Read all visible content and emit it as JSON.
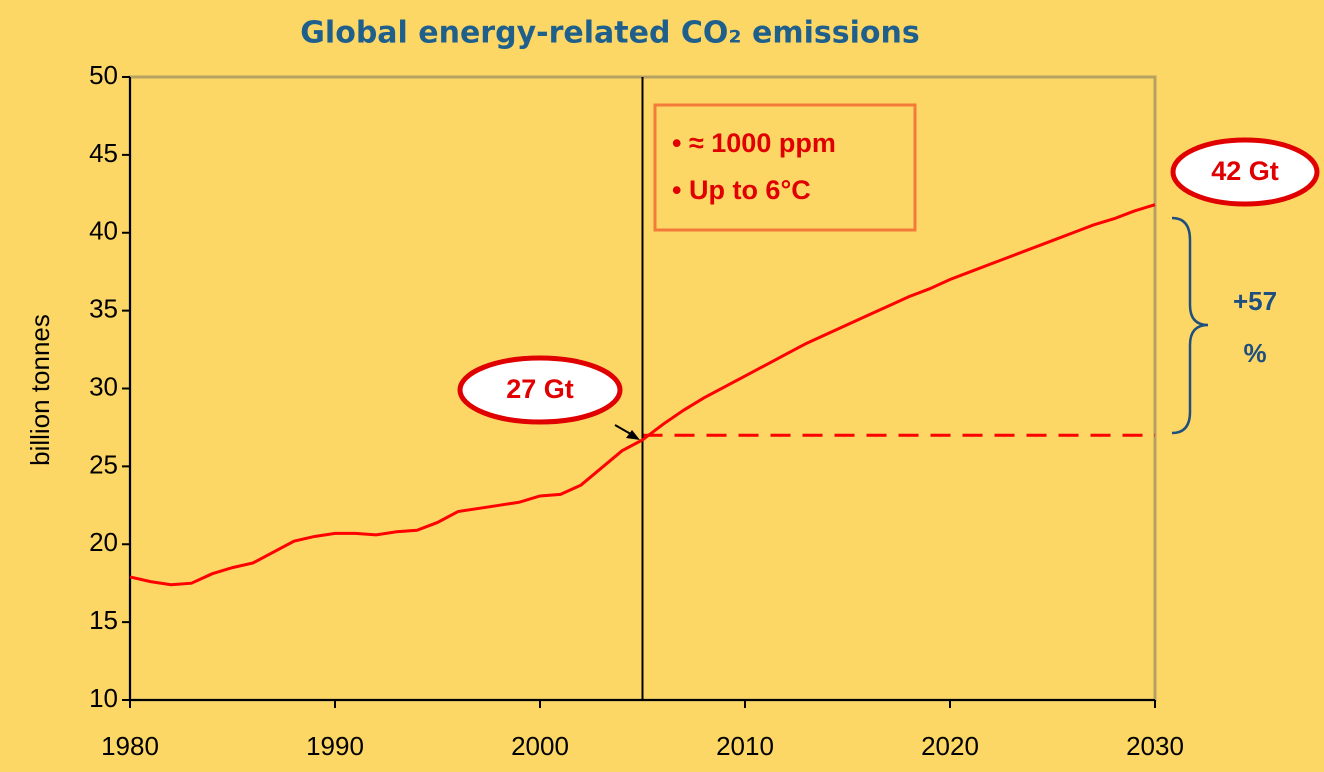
{
  "chart_data": {
    "type": "line",
    "title": "Global energy-related CO₂ emissions",
    "y_label": "billion tonnes",
    "xlim": [
      1980,
      2030
    ],
    "xticks": [
      1980,
      1990,
      2000,
      2010,
      2020,
      2030
    ],
    "ylim": [
      10,
      50
    ],
    "yticks": [
      10,
      15,
      20,
      25,
      30,
      35,
      40,
      45,
      50
    ],
    "series": [
      {
        "color": "#ff0000",
        "x": [
          1980,
          1981,
          1982,
          1983,
          1984,
          1985,
          1986,
          1987,
          1988,
          1989,
          1990,
          1991,
          1992,
          1993,
          1994,
          1995,
          1996,
          1997,
          1998,
          1999,
          2000,
          2001,
          2002,
          2003,
          2004,
          2005,
          2006,
          2007,
          2008,
          2009,
          2010,
          2011,
          2012,
          2013,
          2014,
          2015,
          2016,
          2017,
          2018,
          2019,
          2020,
          2021,
          2022,
          2023,
          2024,
          2025,
          2026,
          2027,
          2028,
          2029,
          2030
        ],
        "values": [
          17.9,
          17.6,
          17.4,
          17.5,
          18.1,
          18.5,
          18.8,
          19.5,
          20.2,
          20.5,
          20.7,
          20.7,
          20.6,
          20.8,
          20.9,
          21.4,
          22.1,
          22.3,
          22.5,
          22.7,
          23.1,
          23.2,
          23.8,
          24.9,
          26.0,
          26.7,
          27.7,
          28.6,
          29.4,
          30.1,
          30.8,
          31.5,
          32.2,
          32.9,
          33.5,
          34.1,
          34.7,
          35.3,
          35.9,
          36.4,
          37.0,
          37.5,
          38.0,
          38.5,
          39.0,
          39.5,
          40.0,
          40.5,
          40.9,
          41.4,
          41.8
        ]
      }
    ],
    "reference_value": 27,
    "vline_x": 2005,
    "annotations": {
      "start_label": "27 Gt",
      "end_label": "42 Gt",
      "change_label": [
        "+57",
        "%"
      ],
      "box": [
        "• ≈ 1000 ppm",
        "• Up to 6°C"
      ]
    },
    "background": "#fdd765",
    "border_color": "#b5a262"
  }
}
